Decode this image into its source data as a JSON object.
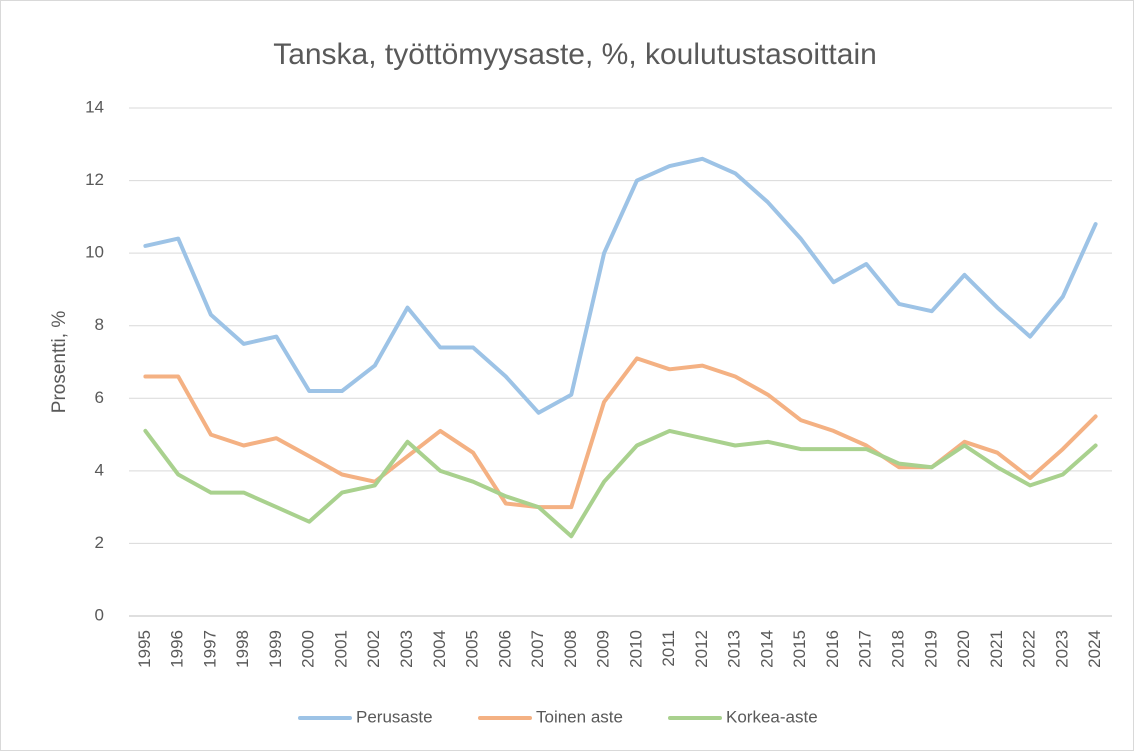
{
  "chart_data": {
    "type": "line",
    "title": "Tanska, työttömyysaste, %, koulutustasoittain",
    "y_label": "Prosentti, %",
    "categories": [
      "1995",
      "1996",
      "1997",
      "1998",
      "1999",
      "2000",
      "2001",
      "2002",
      "2003",
      "2004",
      "2005",
      "2006",
      "2007",
      "2008",
      "2009",
      "2010",
      "2011",
      "2012",
      "2013",
      "2014",
      "2015",
      "2016",
      "2017",
      "2018",
      "2019",
      "2020",
      "2021",
      "2022",
      "2023",
      "2024"
    ],
    "series": [
      {
        "name": "Perusaste",
        "color": "#9dc3e6",
        "values": [
          10.2,
          10.4,
          8.3,
          7.5,
          7.7,
          6.2,
          6.2,
          6.9,
          8.5,
          7.4,
          7.4,
          6.6,
          5.6,
          6.1,
          10.0,
          12.0,
          12.4,
          12.6,
          12.2,
          11.4,
          10.4,
          9.2,
          9.7,
          8.6,
          8.4,
          9.4,
          8.5,
          7.7,
          8.8,
          10.8
        ]
      },
      {
        "name": "Toinen aste",
        "color": "#f4b183",
        "values": [
          6.6,
          6.6,
          5.0,
          4.7,
          4.9,
          4.4,
          3.9,
          3.7,
          4.4,
          5.1,
          4.5,
          3.1,
          3.0,
          3.0,
          5.9,
          7.1,
          6.8,
          6.9,
          6.6,
          6.1,
          5.4,
          5.1,
          4.7,
          4.1,
          4.1,
          4.8,
          4.5,
          3.8,
          4.6,
          5.5
        ]
      },
      {
        "name": "Korkea-aste",
        "color": "#a9d18e",
        "values": [
          5.1,
          3.9,
          3.4,
          3.4,
          3.0,
          2.6,
          3.4,
          3.6,
          4.8,
          4.0,
          3.7,
          3.3,
          3.0,
          2.2,
          3.7,
          4.7,
          5.1,
          4.9,
          4.7,
          4.8,
          4.6,
          4.6,
          4.6,
          4.2,
          4.1,
          4.7,
          4.1,
          3.6,
          3.9,
          4.7
        ]
      }
    ],
    "ylim": [
      0,
      14
    ],
    "yticks": [
      0,
      2,
      4,
      6,
      8,
      10,
      12,
      14
    ],
    "grid": true,
    "legend": "bottom"
  }
}
